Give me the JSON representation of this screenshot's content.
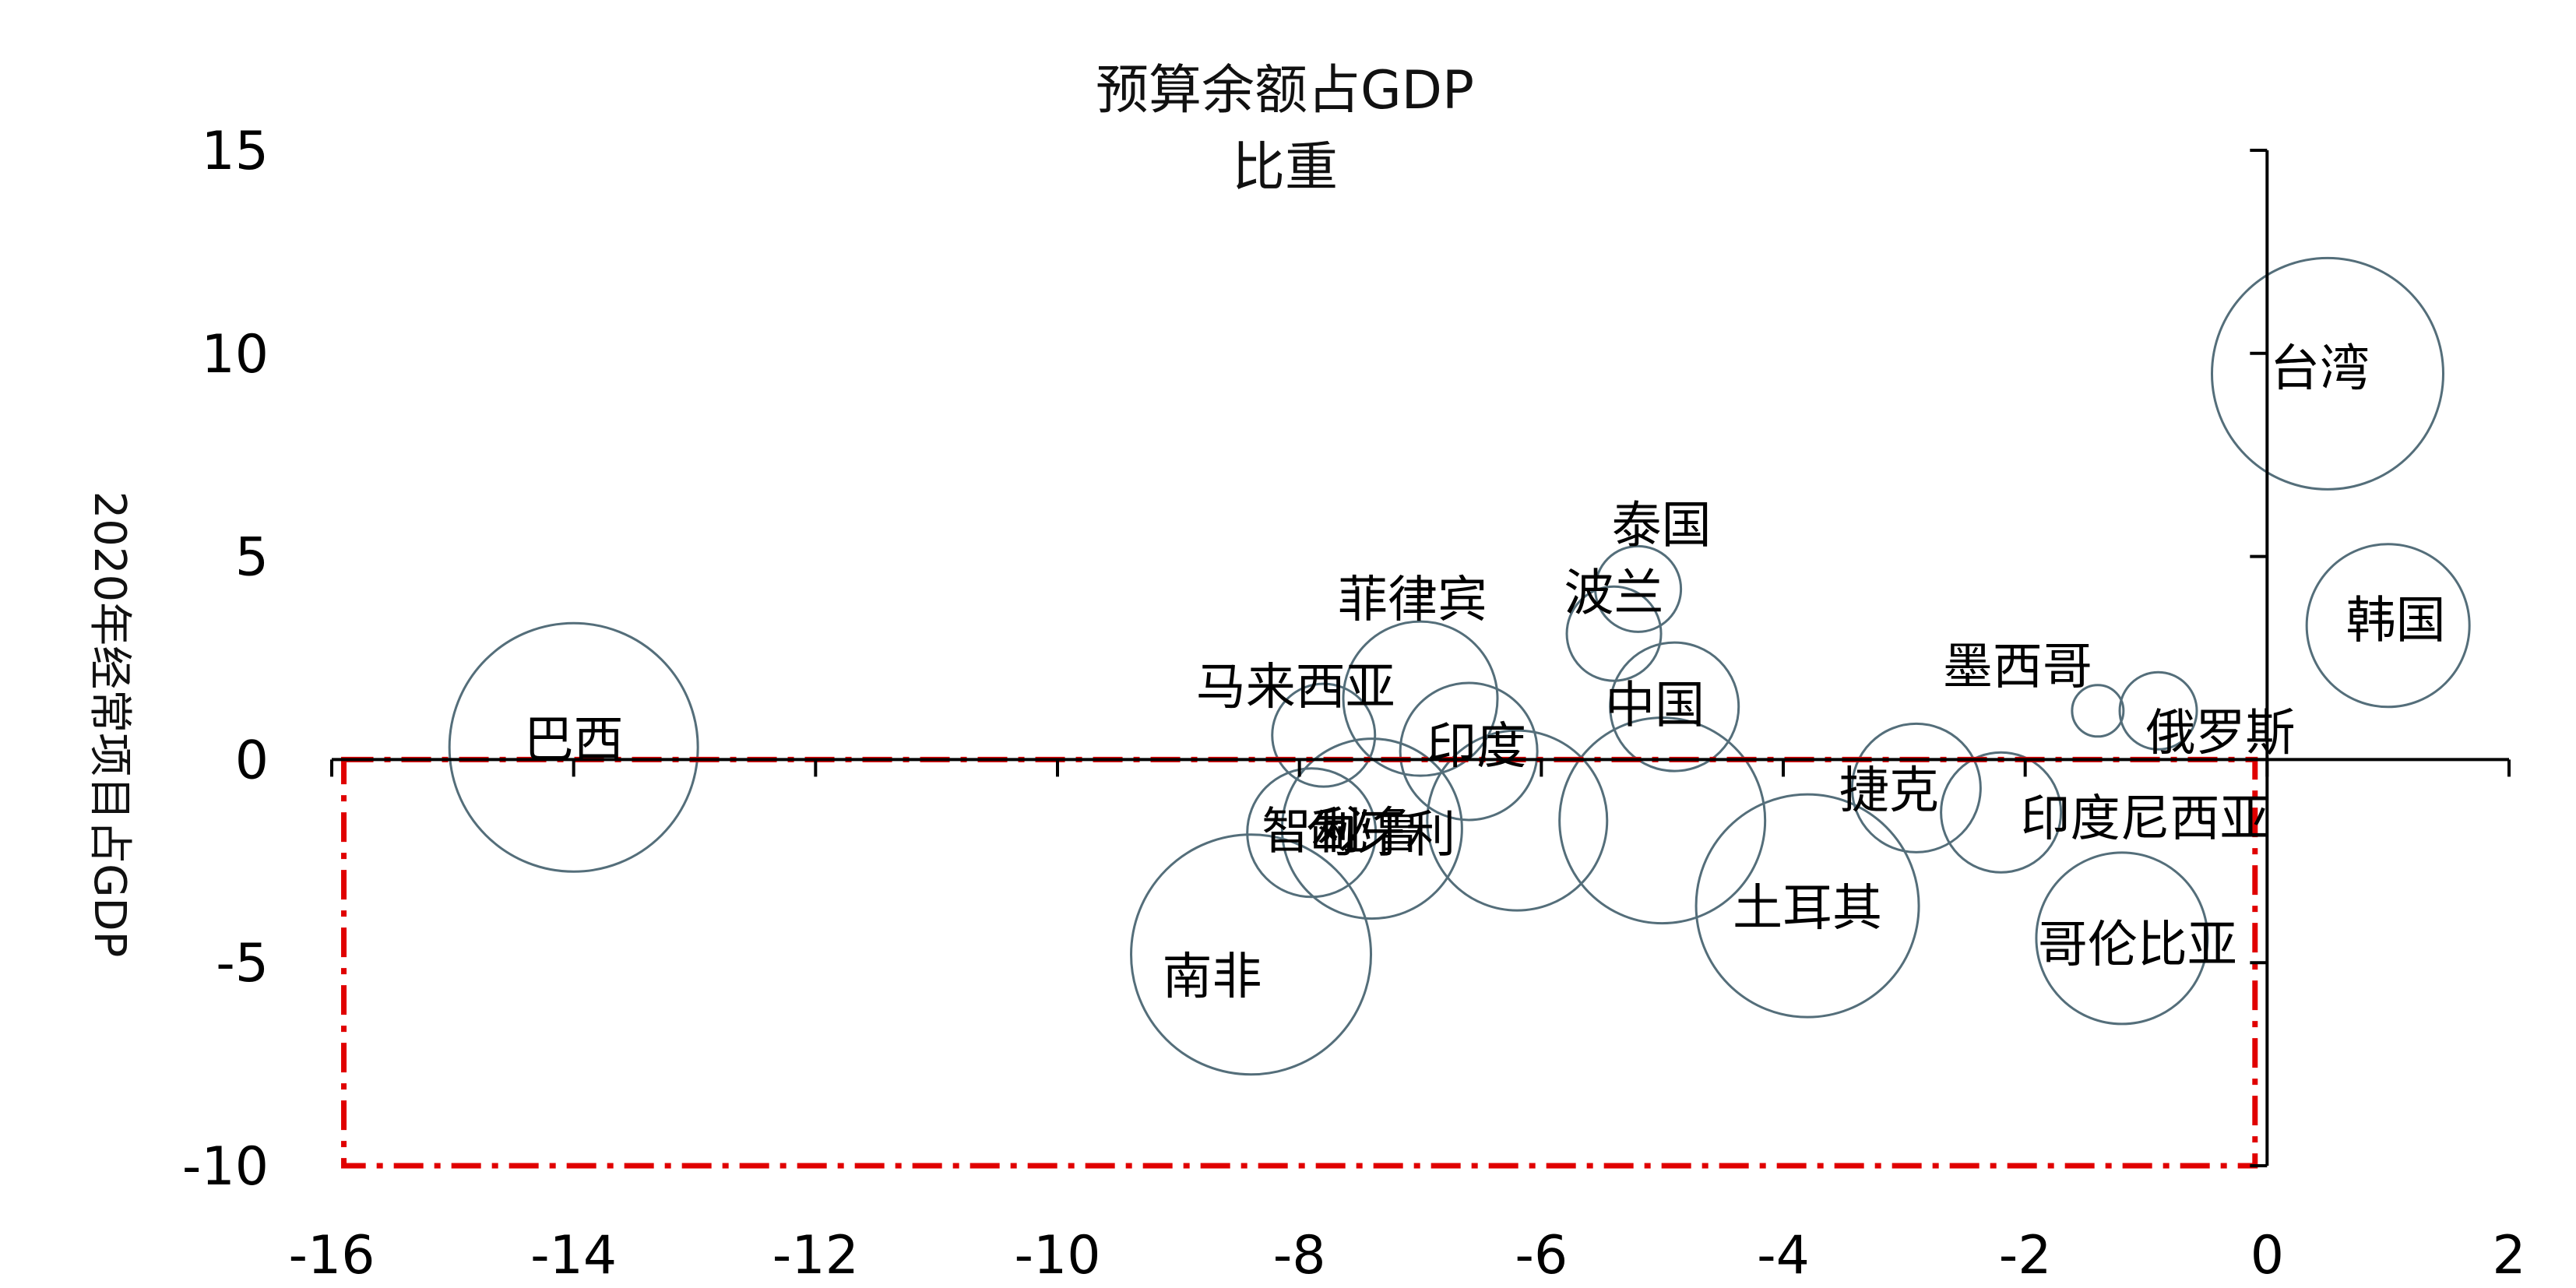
{
  "chart_data": {
    "type": "bubble",
    "title": "预算余额占GDP比重",
    "xlabel": "",
    "ylabel": "2020年经常项目占GDP",
    "xlim": [
      -16,
      2
    ],
    "ylim": [
      -10,
      15
    ],
    "xticks": [
      -16,
      -14,
      -12,
      -10,
      -8,
      -6,
      -4,
      -2,
      0,
      2
    ],
    "yticks": [
      -10,
      -5,
      0,
      5,
      10,
      15
    ],
    "bubble_color": "#546e7a",
    "highlight_color": "#e00000",
    "highlight_box": {
      "x": [
        -15.9,
        -0.1
      ],
      "y": [
        -10,
        0
      ]
    },
    "points": [
      {
        "label": "巴西",
        "x": -14.0,
        "y": 0.3,
        "size": 2.9
      },
      {
        "label": "南非",
        "x": -8.4,
        "y": -4.8,
        "size": 2.8
      },
      {
        "label": "智利",
        "x": -7.9,
        "y": -1.8,
        "size": 1.5
      },
      {
        "label": "马来西亚",
        "x": -7.8,
        "y": 0.6,
        "size": 1.2
      },
      {
        "label": "秘鲁",
        "x": -7.4,
        "y": -1.7,
        "size": 2.1
      },
      {
        "label": "菲律宾",
        "x": -7.0,
        "y": 1.5,
        "size": 1.8
      },
      {
        "label": "印度",
        "x": -6.6,
        "y": 0.2,
        "size": 1.6
      },
      {
        "label": "匈牙利",
        "x": -6.2,
        "y": -1.5,
        "size": 2.1
      },
      {
        "label": "波兰",
        "x": -5.4,
        "y": 3.1,
        "size": 1.1
      },
      {
        "label": "泰国",
        "x": -5.2,
        "y": 4.2,
        "size": 1.0
      },
      {
        "label": "中国",
        "x": -4.9,
        "y": 1.3,
        "size": 1.5
      },
      {
        "label": "匈牙利",
        "x": -5.0,
        "y": -1.5,
        "size": 2.4
      },
      {
        "label": "土耳其",
        "x": -3.8,
        "y": -3.6,
        "size": 2.6
      },
      {
        "label": "捷克",
        "x": -2.9,
        "y": -0.7,
        "size": 1.5
      },
      {
        "label": "印度尼西亚",
        "x": -2.2,
        "y": -1.3,
        "size": 1.4
      },
      {
        "label": "墨西哥",
        "x": -1.4,
        "y": 1.2,
        "size": 0.6
      },
      {
        "label": "俄罗斯",
        "x": -0.9,
        "y": 1.2,
        "size": 0.9
      },
      {
        "label": "哥伦比亚",
        "x": -1.2,
        "y": -4.4,
        "size": 2.0
      },
      {
        "label": "台湾",
        "x": 0.5,
        "y": 9.5,
        "size": 2.7
      },
      {
        "label": "韩国",
        "x": 1.0,
        "y": 3.3,
        "size": 1.9
      }
    ]
  }
}
